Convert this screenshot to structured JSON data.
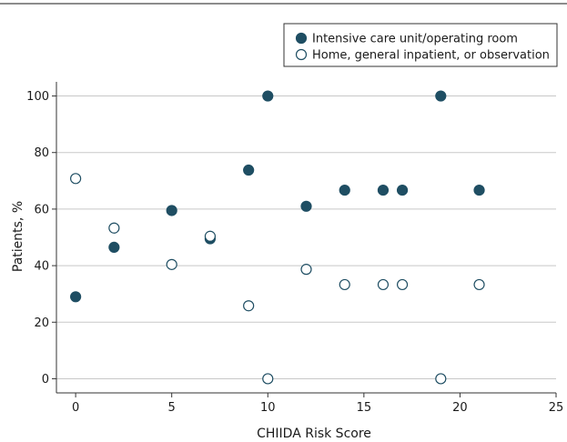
{
  "chart_data": {
    "type": "scatter",
    "title": "",
    "xlabel": "CHIIDA Risk Score",
    "ylabel": "Patients, %",
    "xlim": [
      -1,
      25
    ],
    "ylim": [
      -5,
      105
    ],
    "xticks": [
      0,
      5,
      10,
      15,
      20,
      25
    ],
    "yticks": [
      0,
      20,
      40,
      60,
      80,
      100
    ],
    "grid": "horizontal",
    "legend_position": "top-right",
    "series": [
      {
        "name": "Intensive care unit/operating room",
        "marker": "filled-circle",
        "color": "#1f4e63",
        "x": [
          0,
          2,
          5,
          7,
          9,
          10,
          12,
          14,
          16,
          17,
          19,
          21
        ],
        "y": [
          29,
          46.5,
          59.5,
          49.5,
          73.8,
          100,
          61,
          66.7,
          66.7,
          66.7,
          100,
          66.7
        ]
      },
      {
        "name": "Home, general inpatient, or observation",
        "marker": "open-circle",
        "color": "#1f4e63",
        "x": [
          0,
          2,
          5,
          7,
          9,
          10,
          12,
          14,
          16,
          17,
          19,
          21
        ],
        "y": [
          70.8,
          53.3,
          40.4,
          50.4,
          25.8,
          0,
          38.7,
          33.3,
          33.3,
          33.3,
          0,
          33.3
        ]
      }
    ]
  },
  "colors": {
    "marker": "#1f4e63",
    "grid": "#c8c8c8",
    "axis": "#333333",
    "top_rule": "#1a1a1a"
  }
}
